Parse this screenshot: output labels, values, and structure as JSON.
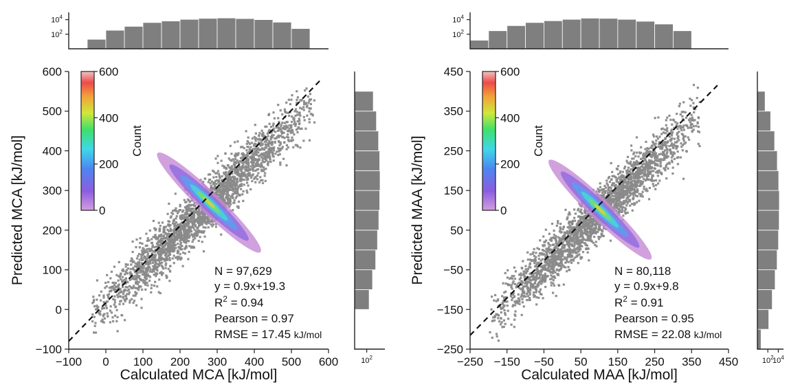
{
  "colors": {
    "hist": "#7f7f7f",
    "points": "#8a8a8a",
    "dashed": "#111111"
  },
  "colormap": "rainbow (violet to red) with transparency",
  "chart_data": [
    {
      "type": "heatmap",
      "xlabel": "Calculated MCA [kJ/mol]",
      "ylabel": "Predicted MCA [kJ/mol]",
      "xlim": [
        -100,
        600
      ],
      "ylim": [
        -100,
        600
      ],
      "xticks": [
        "−100",
        "0",
        "100",
        "200",
        "300",
        "400",
        "500",
        "600"
      ],
      "yticks": [
        "−100",
        "0",
        "100",
        "200",
        "300",
        "400",
        "500",
        "600"
      ],
      "xtick_values": [
        -100,
        0,
        100,
        200,
        300,
        400,
        500,
        600
      ],
      "ytick_values": [
        -100,
        0,
        100,
        200,
        300,
        400,
        500,
        600
      ],
      "fit": {
        "slope": 0.9,
        "intercept": 19.3
      },
      "diag_start": [
        -100,
        -80
      ],
      "diag_end": [
        580,
        580
      ],
      "cloud_range": [
        -40,
        560
      ],
      "colorbar": {
        "label": "Count",
        "ticks": [
          "0",
          "200",
          "400",
          "600"
        ],
        "tick_values": [
          0,
          200,
          400,
          600
        ],
        "range": [
          0,
          600
        ]
      },
      "stats": {
        "n": "N = 97,629",
        "eq": "y = 0.9x+19.3",
        "r2_prefix": "R",
        "r2_sup": "2",
        "r2_suffix": " = 0.94",
        "pearson": "Pearson = 0.97",
        "rmse_main": "RMSE = 17.45 ",
        "rmse_unit": "kJ/mol"
      },
      "top_hist": {
        "bin_edges": [
          -50,
          0,
          50,
          100,
          150,
          200,
          250,
          300,
          350,
          400,
          450,
          500,
          550
        ],
        "counts": [
          20,
          350,
          1200,
          4000,
          6500,
          11000,
          15000,
          17000,
          14000,
          10000,
          4500,
          600
        ],
        "scale": "log",
        "ticks": [
          {
            "base": "10",
            "exp": "2",
            "value": 100
          },
          {
            "base": "10",
            "exp": "4",
            "value": 10000
          }
        ]
      },
      "right_hist": {
        "bin_edges": [
          0,
          50,
          100,
          150,
          200,
          250,
          300,
          350,
          400,
          450,
          500,
          550
        ],
        "counts": [
          250,
          900,
          3000,
          6000,
          10000,
          14000,
          16000,
          14000,
          9000,
          4000,
          1200
        ],
        "scale": "log",
        "ticks": [
          {
            "base": "10",
            "exp": "2",
            "value": 100
          }
        ]
      }
    },
    {
      "type": "heatmap",
      "xlabel": "Calculated MAA [kJ/mol]",
      "ylabel": "Predicted MAA [kJ/mol]",
      "xlim": [
        -250,
        450
      ],
      "ylim": [
        -250,
        450
      ],
      "xticks": [
        "−250",
        "−150",
        "−50",
        "50",
        "150",
        "250",
        "350",
        "450"
      ],
      "yticks": [
        "−250",
        "−150",
        "−50",
        "50",
        "150",
        "250",
        "350",
        "450"
      ],
      "xtick_values": [
        -250,
        -150,
        -50,
        50,
        150,
        250,
        350,
        450
      ],
      "ytick_values": [
        -250,
        -150,
        -50,
        50,
        150,
        250,
        350,
        450
      ],
      "fit": {
        "slope": 0.9,
        "intercept": 9.8
      },
      "diag_start": [
        -250,
        -215
      ],
      "diag_end": [
        420,
        415
      ],
      "cloud_range": [
        -200,
        370
      ],
      "colorbar": {
        "label": "Count",
        "ticks": [
          "0",
          "200",
          "400",
          "600"
        ],
        "tick_values": [
          0,
          200,
          400,
          600
        ],
        "range": [
          0,
          600
        ]
      },
      "stats": {
        "n": "N = 80,118",
        "eq": "y = 0.9x+9.8",
        "r2_prefix": "R",
        "r2_sup": "2",
        "r2_suffix": " = 0.91",
        "pearson": "Pearson = 0.95",
        "rmse_main": "RMSE = 22.08 ",
        "rmse_unit": "kJ/mol"
      },
      "top_hist": {
        "bin_edges": [
          -250,
          -200,
          -150,
          -100,
          -50,
          0,
          50,
          100,
          150,
          200,
          250,
          300,
          350
        ],
        "counts": [
          15,
          300,
          1500,
          4000,
          7000,
          11000,
          16000,
          15000,
          11000,
          6000,
          2500,
          300
        ],
        "scale": "log",
        "ticks": [
          {
            "base": "10",
            "exp": "2",
            "value": 100
          },
          {
            "base": "10",
            "exp": "4",
            "value": 10000
          }
        ]
      },
      "right_hist": {
        "bin_edges": [
          -250,
          -200,
          -150,
          -100,
          -50,
          0,
          50,
          100,
          150,
          200,
          250,
          300,
          350,
          400
        ],
        "counts": [
          5,
          150,
          700,
          2500,
          6000,
          11000,
          15000,
          16000,
          12000,
          6500,
          2000,
          350,
          30
        ],
        "scale": "log",
        "ticks": [
          {
            "base": "10",
            "exp": "2",
            "value": 100
          },
          {
            "base": "10",
            "exp": "4",
            "value": 10000
          }
        ]
      }
    }
  ]
}
